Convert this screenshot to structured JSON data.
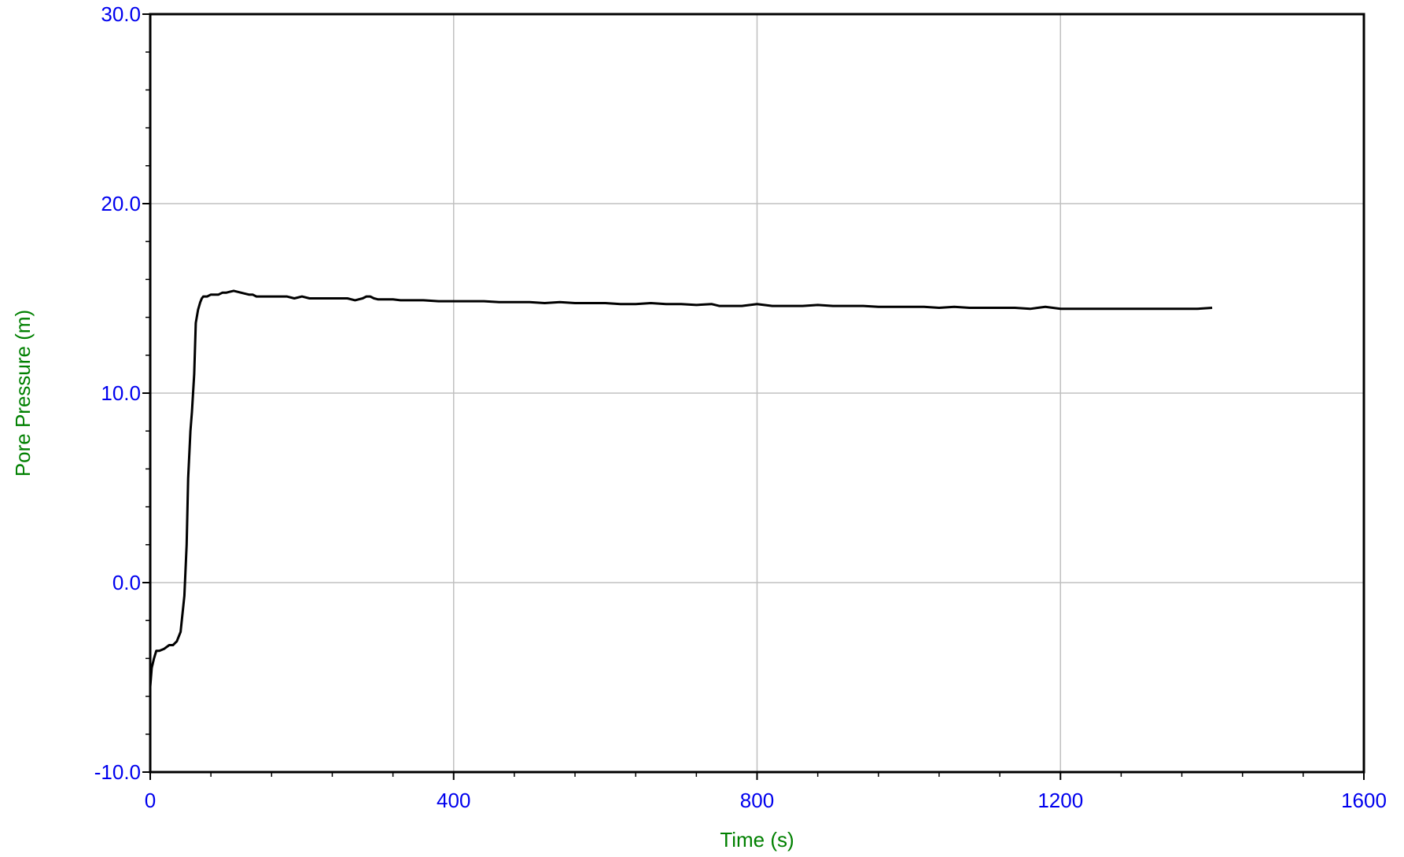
{
  "chart_data": {
    "type": "line",
    "title": "",
    "xlabel": "Time (s)",
    "ylabel": "Pore Pressure (m)",
    "xlim": [
      0,
      1600
    ],
    "ylim": [
      -10,
      30
    ],
    "x_ticks": [
      "0",
      "400",
      "800",
      "1200",
      "1600"
    ],
    "y_ticks": [
      "-10.0",
      "0.0",
      "10.0",
      "20.0",
      "30.0"
    ],
    "grid": true,
    "legend": "none",
    "colors": {
      "tick_labels": "#0000ee",
      "axis_titles": "#008000",
      "line": "#000000",
      "grid": "#c0c0c0"
    },
    "series": [
      {
        "x": [
          0,
          2,
          5,
          8,
          12,
          18,
          25,
          30,
          35,
          40,
          45,
          48,
          50,
          53,
          55,
          58,
          60,
          63,
          66,
          68,
          70,
          75,
          80,
          85,
          90,
          95,
          100,
          105,
          110,
          120,
          130,
          135,
          140,
          145,
          150,
          160,
          170,
          180,
          190,
          200,
          210,
          220,
          230,
          240,
          250,
          260,
          270,
          280,
          285,
          290,
          295,
          300,
          310,
          320,
          330,
          340,
          350,
          360,
          380,
          400,
          420,
          440,
          460,
          480,
          500,
          520,
          540,
          560,
          580,
          600,
          620,
          640,
          660,
          680,
          700,
          720,
          740,
          750,
          760,
          780,
          800,
          820,
          840,
          860,
          880,
          900,
          920,
          940,
          960,
          980,
          1000,
          1020,
          1040,
          1060,
          1080,
          1100,
          1120,
          1140,
          1160,
          1170,
          1180,
          1200,
          1220,
          1240,
          1260,
          1280,
          1300,
          1320,
          1340,
          1360,
          1380,
          1400
        ],
        "y": [
          -5.5,
          -4.5,
          -4.0,
          -3.6,
          -3.6,
          -3.5,
          -3.3,
          -3.3,
          -3.1,
          -2.6,
          -0.7,
          2.0,
          5.5,
          8.0,
          9.0,
          11.0,
          13.7,
          14.4,
          14.8,
          15.0,
          15.1,
          15.1,
          15.2,
          15.2,
          15.2,
          15.3,
          15.3,
          15.35,
          15.4,
          15.3,
          15.2,
          15.2,
          15.1,
          15.1,
          15.1,
          15.1,
          15.1,
          15.1,
          15.0,
          15.1,
          15.0,
          15.0,
          15.0,
          15.0,
          15.0,
          15.0,
          14.9,
          15.0,
          15.1,
          15.1,
          15.0,
          14.95,
          14.95,
          14.95,
          14.9,
          14.9,
          14.9,
          14.9,
          14.85,
          14.85,
          14.85,
          14.85,
          14.8,
          14.8,
          14.8,
          14.75,
          14.8,
          14.75,
          14.75,
          14.75,
          14.7,
          14.7,
          14.75,
          14.7,
          14.7,
          14.65,
          14.7,
          14.6,
          14.6,
          14.6,
          14.7,
          14.6,
          14.6,
          14.6,
          14.65,
          14.6,
          14.6,
          14.6,
          14.55,
          14.55,
          14.55,
          14.55,
          14.5,
          14.55,
          14.5,
          14.5,
          14.5,
          14.5,
          14.45,
          14.5,
          14.55,
          14.45,
          14.45,
          14.45,
          14.45,
          14.45,
          14.45,
          14.45,
          14.45,
          14.45,
          14.45,
          14.5
        ]
      }
    ]
  }
}
